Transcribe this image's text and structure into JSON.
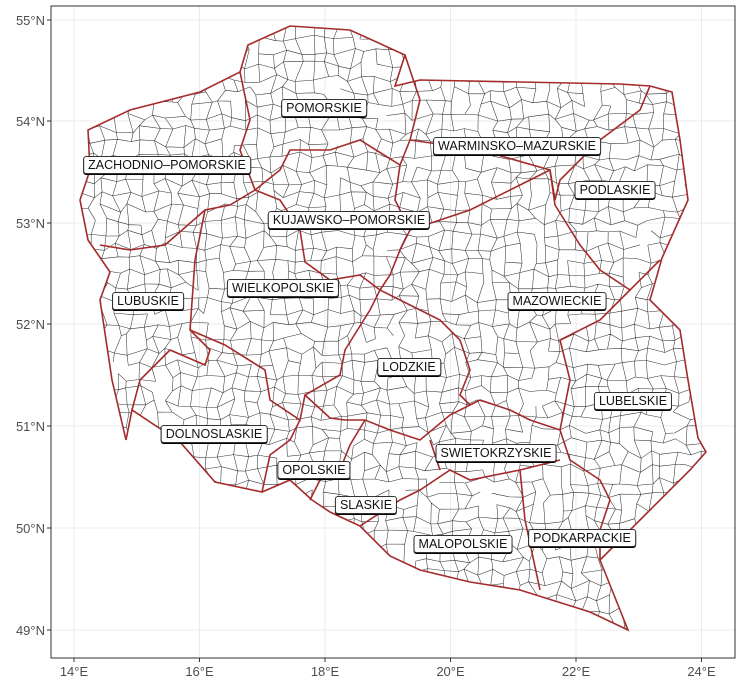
{
  "map": {
    "x_axis_ticks": [
      "14°E",
      "16°E",
      "18°E",
      "20°E",
      "22°E",
      "24°E"
    ],
    "y_axis_ticks": [
      "49°N",
      "50°N",
      "51°N",
      "52°N",
      "53°N",
      "54°N",
      "55°N"
    ],
    "colors": {
      "region_border": "#a52a2a",
      "municipality_border": "#333333",
      "grid": "#ebebeb",
      "panel_border": "#333333"
    },
    "regions": [
      {
        "name": "POMORSKIE"
      },
      {
        "name": "WARMINSKO–MAZURSKIE"
      },
      {
        "name": "ZACHODNIO–POMORSKIE"
      },
      {
        "name": "PODLASKIE"
      },
      {
        "name": "KUJAWSKO–POMORSKIE"
      },
      {
        "name": "LUBUSKIE"
      },
      {
        "name": "WIELKOPOLSKIE"
      },
      {
        "name": "MAZOWIECKIE"
      },
      {
        "name": "LODZKIE"
      },
      {
        "name": "LUBELSKIE"
      },
      {
        "name": "DOLNOSLASKIE"
      },
      {
        "name": "SWIETOKRZYSKIE"
      },
      {
        "name": "OPOLSKIE"
      },
      {
        "name": "SLASKIE"
      },
      {
        "name": "MALOPOLSKIE"
      },
      {
        "name": "PODKARPACKIE"
      }
    ]
  }
}
